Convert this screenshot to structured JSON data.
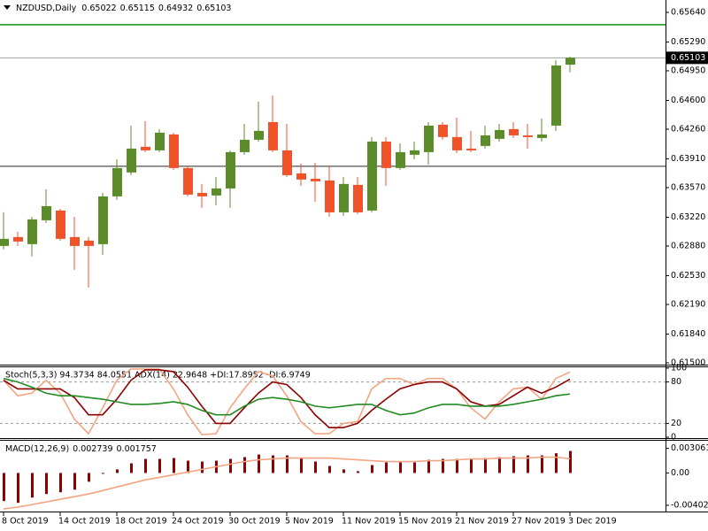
{
  "chart_data": [
    {
      "type": "candlestick",
      "title": "NZDUSD,Daily",
      "up_color": "#5a8c2a",
      "down_color": "#f0522a",
      "open": [
        0.62881,
        0.62986,
        0.62902,
        0.63184,
        0.63299,
        0.62986,
        0.62944,
        0.62902,
        0.63466,
        0.63749,
        0.64052,
        0.6401,
        0.64198,
        0.63801,
        0.63508,
        0.63477,
        0.6356,
        0.63989,
        0.64135,
        0.64344,
        0.6401,
        0.63738,
        0.63675,
        0.63654,
        0.63278,
        0.63602,
        0.63299,
        0.64114,
        0.63801,
        0.63958,
        0.63989,
        0.64313,
        0.64167,
        0.64031,
        0.64062,
        0.64146,
        0.64261,
        0.64187,
        0.64156,
        0.64302,
        0.65022
      ],
      "high": [
        0.63278,
        0.63048,
        0.63226,
        0.6355,
        0.6332,
        0.63226,
        0.62986,
        0.63508,
        0.63905,
        0.64302,
        0.64355,
        0.64261,
        0.64219,
        0.63822,
        0.63613,
        0.63696,
        0.6401,
        0.64323,
        0.64585,
        0.64658,
        0.64323,
        0.63853,
        0.63863,
        0.63832,
        0.63696,
        0.63696,
        0.64167,
        0.64167,
        0.64093,
        0.64114,
        0.64344,
        0.64344,
        0.64396,
        0.6424,
        0.64302,
        0.64323,
        0.64344,
        0.64323,
        0.64386,
        0.65076,
        0.65115
      ],
      "low": [
        0.62839,
        0.62881,
        0.62756,
        0.63153,
        0.62944,
        0.62599,
        0.6239,
        0.62777,
        0.63425,
        0.63717,
        0.63989,
        0.63989,
        0.6378,
        0.63466,
        0.63331,
        0.63362,
        0.63331,
        0.63958,
        0.64114,
        0.63989,
        0.63696,
        0.63592,
        0.63404,
        0.63226,
        0.63236,
        0.63257,
        0.63278,
        0.63592,
        0.6378,
        0.63905,
        0.63843,
        0.64135,
        0.63978,
        0.63989,
        0.64031,
        0.64114,
        0.64156,
        0.64031,
        0.64114,
        0.6424,
        0.64932
      ],
      "close": [
        0.62965,
        0.62933,
        0.63195,
        0.63351,
        0.62965,
        0.62881,
        0.62881,
        0.63466,
        0.63801,
        0.64031,
        0.6401,
        0.64219,
        0.63801,
        0.63487,
        0.63466,
        0.6356,
        0.63989,
        0.64135,
        0.6424,
        0.6401,
        0.63717,
        0.63665,
        0.63644,
        0.63278,
        0.63613,
        0.63278,
        0.64114,
        0.63801,
        0.63989,
        0.6401,
        0.64302,
        0.64167,
        0.6401,
        0.6401,
        0.64187,
        0.6425,
        0.64187,
        0.64167,
        0.64198,
        0.65013,
        0.65103
      ],
      "levels": [
        {
          "value": 0.65494,
          "color": "#008000"
        },
        {
          "value": 0.63822,
          "color": "#505050"
        }
      ],
      "ylim": [
        0.61479,
        0.65786
      ],
      "yticks": [
        {
          "value": 0.6564,
          "label": "0.65640"
        },
        {
          "value": 0.6529,
          "label": "0.65290"
        },
        {
          "value": 0.6495,
          "label": "0.64950"
        },
        {
          "value": 0.646,
          "label": "0.64600"
        },
        {
          "value": 0.6426,
          "label": "0.64260"
        },
        {
          "value": 0.6391,
          "label": "0.63910"
        },
        {
          "value": 0.6357,
          "label": "0.63570"
        },
        {
          "value": 0.6322,
          "label": "0.63220"
        },
        {
          "value": 0.6288,
          "label": "0.62880"
        },
        {
          "value": 0.6253,
          "label": "0.62530"
        },
        {
          "value": 0.6219,
          "label": "0.62190"
        },
        {
          "value": 0.6184,
          "label": "0.61840"
        },
        {
          "value": 0.615,
          "label": "0.61500"
        }
      ]
    },
    {
      "type": "line",
      "title": "Stoch(5,3,3) 94.3734 84.0551  ADX(14) 22.9648  +DI:17.8952  -DI:6.9749",
      "series": [
        {
          "color": "#f4a582",
          "values": [
            82.5,
            60,
            63.8,
            82.5,
            63.8,
            26.3,
            5,
            42.5,
            82.5,
            98.8,
            98.8,
            98.8,
            70,
            32.5,
            3.8,
            5,
            42.5,
            70,
            95,
            88.8,
            60,
            22.5,
            5,
            5,
            20,
            22.5,
            70,
            85,
            85,
            76.3,
            85,
            85,
            70,
            42.5,
            26.3,
            51.3,
            70,
            72.5,
            55,
            85,
            94.3734
          ]
        },
        {
          "color": "#8b0000",
          "values": [
            82.5,
            70,
            70,
            70,
            70,
            57.5,
            32.5,
            32.5,
            55,
            82.5,
            97.5,
            97.5,
            95,
            72.5,
            45,
            20,
            20,
            42.5,
            63.8,
            80,
            76.3,
            57.5,
            32.5,
            13.8,
            13.8,
            20,
            38.8,
            55,
            70,
            76.3,
            80,
            80,
            70,
            51.3,
            45,
            47.5,
            60,
            72.5,
            63.8,
            72.5,
            84.0551
          ]
        },
        {
          "color": "#228b22",
          "values": [
            85,
            80,
            72.5,
            63.8,
            60,
            60,
            57.5,
            55,
            51.3,
            47.5,
            47.5,
            48.8,
            51.3,
            47.5,
            38.8,
            32.5,
            32.5,
            45,
            55,
            57.5,
            55,
            51.3,
            45,
            42.5,
            45,
            47.5,
            47.5,
            38.8,
            32.5,
            35,
            42.5,
            47.5,
            47.5,
            45,
            45,
            45,
            47.5,
            51.3,
            55,
            60,
            62.5
          ]
        }
      ],
      "levels": [
        80,
        20
      ],
      "ylim": [
        0,
        100
      ],
      "yticks": [
        100,
        80,
        20,
        0
      ]
    },
    {
      "type": "combo",
      "title": "MACD(12,26,9)",
      "categories": [
        "8 Oct 2019",
        null,
        null,
        null,
        "14 Oct 2019",
        null,
        null,
        null,
        "18 Oct 2019",
        null,
        null,
        null,
        "24 Oct 2019",
        null,
        null,
        null,
        "30 Oct 2019",
        null,
        null,
        null,
        "5 Nov 2019",
        null,
        null,
        null,
        "11 Nov 2019",
        null,
        null,
        null,
        "15 Nov 2019",
        null,
        null,
        null,
        "21 Nov 2019",
        null,
        null,
        null,
        "27 Nov 2019",
        null,
        null,
        null,
        "3 Dec 2019"
      ],
      "series": [
        {
          "type": "bar",
          "color": "#8b0000",
          "values": [
            -0.0035,
            -0.00372,
            -0.00306,
            -0.00262,
            -0.0024,
            -0.00208,
            -0.00109,
            -0.00011,
            0.00044,
            0.0012,
            0.00175,
            0.00175,
            0.00186,
            0.00153,
            0.00142,
            0.00153,
            0.00175,
            0.00197,
            0.00229,
            0.00219,
            0.00219,
            0.00186,
            0.00142,
            0.00087,
            0.00044,
            0.00022,
            0.00098,
            0.00131,
            0.00131,
            0.00131,
            0.00164,
            0.00175,
            0.00175,
            0.00175,
            0.00186,
            0.00197,
            0.00208,
            0.00219,
            0.00219,
            0.00245,
            0.002739
          ]
        },
        {
          "type": "line",
          "color": "#f4a582",
          "values": [
            -0.00448,
            -0.00426,
            -0.00393,
            -0.00361,
            -0.00328,
            -0.00295,
            -0.00262,
            -0.00219,
            -0.00175,
            -0.00131,
            -0.00087,
            -0.00055,
            -0.00022,
            0.00011,
            0.00044,
            0.00077,
            0.00109,
            0.00142,
            0.00164,
            0.00175,
            0.00186,
            0.00186,
            0.00186,
            0.00186,
            0.00175,
            0.00164,
            0.00153,
            0.00142,
            0.00142,
            0.00142,
            0.00153,
            0.00153,
            0.00164,
            0.00175,
            0.00175,
            0.00186,
            0.00186,
            0.00186,
            0.00197,
            0.00197,
            0.001757
          ]
        }
      ],
      "ylim": [
        -0.0048,
        0.0039
      ],
      "yticks": [
        0.003061,
        {
          "value": 0,
          "label": "0.00"
        },
        -0.004024
      ]
    }
  ]
}
